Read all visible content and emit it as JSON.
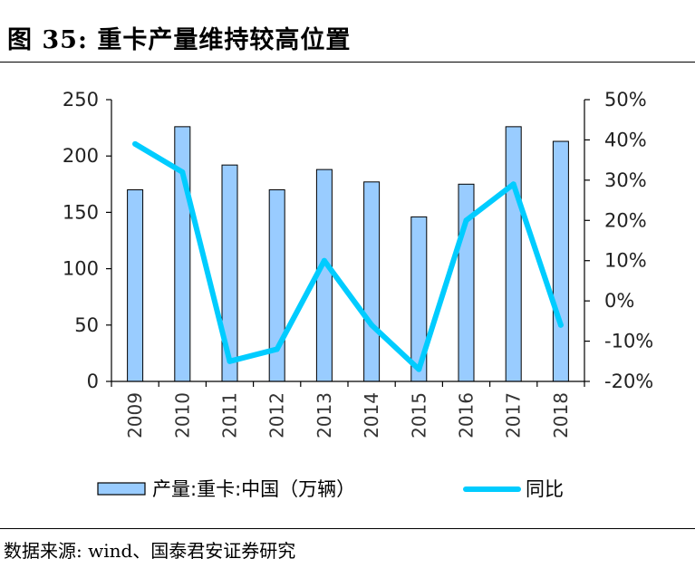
{
  "figure": {
    "title": "图 35:  重卡产量维持较高位置",
    "source": "数据来源:  wind、国泰君安证券研究"
  },
  "chart_data": {
    "type": "bar",
    "categories": [
      "2009",
      "2010",
      "2011",
      "2012",
      "2013",
      "2014",
      "2015",
      "2016",
      "2017",
      "2018"
    ],
    "series": [
      {
        "name": "产量:重卡:中国（万辆）",
        "type": "bar",
        "axis": "left",
        "color": "#99CCFF",
        "values": [
          170,
          226,
          192,
          170,
          188,
          177,
          146,
          175,
          226,
          213
        ]
      },
      {
        "name": "同比",
        "type": "line",
        "axis": "right",
        "color": "#00CCFF",
        "values": [
          39,
          32,
          -15,
          -12,
          10,
          -6,
          -17,
          20,
          29,
          -6
        ]
      }
    ],
    "ylim_left": [
      0,
      250
    ],
    "yticks_left": [
      "0",
      "50",
      "100",
      "150",
      "200",
      "250"
    ],
    "ylim_right": [
      -20,
      50
    ],
    "yticks_right": [
      "-20%",
      "-10%",
      "0%",
      "10%",
      "20%",
      "30%",
      "40%",
      "50%"
    ],
    "legend_position": "bottom",
    "grid": false
  }
}
